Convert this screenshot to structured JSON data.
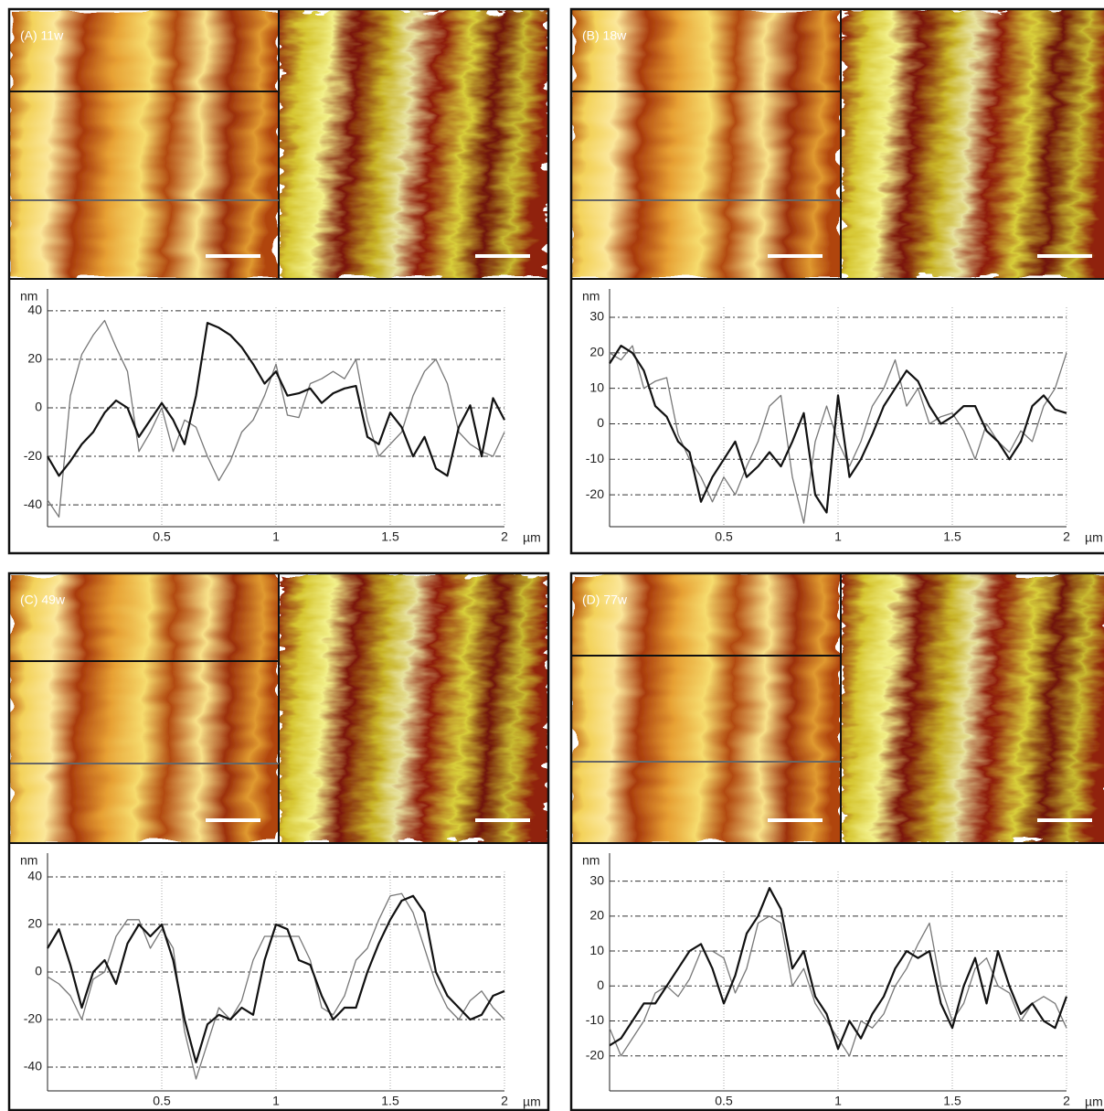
{
  "chart_data": [
    {
      "type": "line",
      "title": "(A) 11w",
      "y_label": "nm",
      "x_label": "µm",
      "x": [
        0,
        0.05,
        0.1,
        0.15,
        0.2,
        0.25,
        0.3,
        0.35,
        0.4,
        0.45,
        0.5,
        0.55,
        0.6,
        0.65,
        0.7,
        0.75,
        0.8,
        0.85,
        0.9,
        0.95,
        1,
        1.05,
        1.1,
        1.15,
        1.2,
        1.25,
        1.3,
        1.35,
        1.4,
        1.45,
        1.5,
        1.55,
        1.6,
        1.65,
        1.7,
        1.75,
        1.8,
        1.85,
        1.9,
        1.95,
        2
      ],
      "xlim": [
        0,
        2
      ],
      "xticks": [
        0.5,
        1,
        1.5,
        2
      ],
      "ylim": [
        -49,
        49
      ],
      "yticks": [
        -40,
        -20,
        0,
        20,
        40
      ],
      "series": [
        {
          "color": "#777777",
          "values": [
            -38,
            -45,
            5,
            22,
            30,
            36,
            25,
            15,
            -18,
            -10,
            0,
            -18,
            -5,
            -8,
            -20,
            -30,
            -22,
            -10,
            -5,
            5,
            18,
            -3,
            -4,
            10,
            12,
            15,
            12,
            20,
            -5,
            -20,
            -15,
            -10,
            5,
            15,
            20,
            10,
            -10,
            -15,
            -18,
            -20,
            -10
          ]
        },
        {
          "color": "#111111",
          "values": [
            -20,
            -28,
            -22,
            -15,
            -10,
            -2,
            3,
            0,
            -12,
            -5,
            2,
            -5,
            -15,
            5,
            35,
            33,
            30,
            25,
            18,
            10,
            15,
            5,
            6,
            8,
            2,
            6,
            8,
            9,
            -12,
            -15,
            -2,
            -8,
            -20,
            -12,
            -25,
            -28,
            -8,
            1,
            -20,
            4,
            -5
          ]
        }
      ]
    },
    {
      "type": "line",
      "title": "(B) 18w",
      "y_label": "nm",
      "x_label": "µm",
      "x": [
        0,
        0.05,
        0.1,
        0.15,
        0.2,
        0.25,
        0.3,
        0.35,
        0.4,
        0.45,
        0.5,
        0.55,
        0.6,
        0.65,
        0.7,
        0.75,
        0.8,
        0.85,
        0.9,
        0.95,
        1,
        1.05,
        1.1,
        1.15,
        1.2,
        1.25,
        1.3,
        1.35,
        1.4,
        1.45,
        1.5,
        1.55,
        1.6,
        1.65,
        1.7,
        1.75,
        1.8,
        1.85,
        1.9,
        1.95,
        2
      ],
      "xlim": [
        0,
        2
      ],
      "xticks": [
        0.5,
        1,
        1.5,
        2
      ],
      "ylim": [
        -29,
        38
      ],
      "yticks": [
        -20,
        -10,
        0,
        10,
        20,
        30
      ],
      "series": [
        {
          "color": "#777777",
          "values": [
            20,
            18,
            22,
            10,
            12,
            13,
            -3,
            -10,
            -15,
            -22,
            -15,
            -20,
            -12,
            -5,
            5,
            8,
            -15,
            -28,
            -5,
            5,
            -5,
            -12,
            -5,
            5,
            10,
            18,
            5,
            10,
            0,
            2,
            3,
            -2,
            -10,
            0,
            -5,
            -8,
            -2,
            -5,
            5,
            10,
            20
          ]
        },
        {
          "color": "#111111",
          "values": [
            17,
            22,
            20,
            15,
            5,
            2,
            -5,
            -8,
            -22,
            -15,
            -10,
            -5,
            -15,
            -12,
            -8,
            -12,
            -5,
            3,
            -20,
            -25,
            8,
            -15,
            -10,
            -3,
            5,
            10,
            15,
            12,
            5,
            0,
            2,
            5,
            5,
            -2,
            -5,
            -10,
            -5,
            5,
            8,
            4,
            3
          ]
        }
      ]
    },
    {
      "type": "line",
      "title": "(C) 49w",
      "y_label": "nm",
      "x_label": "µm",
      "x": [
        0,
        0.05,
        0.1,
        0.15,
        0.2,
        0.25,
        0.3,
        0.35,
        0.4,
        0.45,
        0.5,
        0.55,
        0.6,
        0.65,
        0.7,
        0.75,
        0.8,
        0.85,
        0.9,
        0.95,
        1,
        1.05,
        1.1,
        1.15,
        1.2,
        1.25,
        1.3,
        1.35,
        1.4,
        1.45,
        1.5,
        1.55,
        1.6,
        1.65,
        1.7,
        1.75,
        1.8,
        1.85,
        1.9,
        1.95,
        2
      ],
      "xlim": [
        0,
        2
      ],
      "xticks": [
        0.5,
        1,
        1.5,
        2
      ],
      "ylim": [
        -50,
        50
      ],
      "yticks": [
        -40,
        -20,
        0,
        20,
        40
      ],
      "series": [
        {
          "color": "#777777",
          "values": [
            -2,
            -5,
            -10,
            -20,
            -3,
            0,
            15,
            22,
            22,
            10,
            18,
            10,
            -25,
            -45,
            -30,
            -15,
            -20,
            -12,
            5,
            15,
            15,
            15,
            15,
            5,
            -15,
            -18,
            -10,
            5,
            10,
            22,
            32,
            33,
            25,
            10,
            -5,
            -15,
            -20,
            -12,
            -8,
            -15,
            -20
          ]
        },
        {
          "color": "#111111",
          "values": [
            10,
            18,
            3,
            -15,
            0,
            5,
            -5,
            12,
            20,
            15,
            20,
            5,
            -20,
            -38,
            -22,
            -18,
            -20,
            -15,
            -18,
            5,
            20,
            18,
            5,
            3,
            -10,
            -20,
            -15,
            -15,
            0,
            12,
            22,
            30,
            32,
            25,
            0,
            -10,
            -15,
            -20,
            -18,
            -10,
            -8
          ]
        }
      ]
    },
    {
      "type": "line",
      "title": "(D) 77w",
      "y_label": "nm",
      "x_label": "µm",
      "x": [
        0,
        0.05,
        0.1,
        0.15,
        0.2,
        0.25,
        0.3,
        0.35,
        0.4,
        0.45,
        0.5,
        0.55,
        0.6,
        0.65,
        0.7,
        0.75,
        0.8,
        0.85,
        0.9,
        0.95,
        1,
        1.05,
        1.1,
        1.15,
        1.2,
        1.25,
        1.3,
        1.35,
        1.4,
        1.45,
        1.5,
        1.55,
        1.6,
        1.65,
        1.7,
        1.75,
        1.8,
        1.85,
        1.9,
        1.95,
        2
      ],
      "xlim": [
        0,
        2
      ],
      "xticks": [
        0.5,
        1,
        1.5,
        2
      ],
      "ylim": [
        -30,
        38
      ],
      "yticks": [
        -20,
        -10,
        0,
        10,
        20,
        30
      ],
      "series": [
        {
          "color": "#777777",
          "values": [
            -12,
            -20,
            -15,
            -10,
            -2,
            0,
            -3,
            2,
            10,
            10,
            8,
            -2,
            5,
            18,
            20,
            18,
            0,
            5,
            -5,
            -10,
            -15,
            -20,
            -10,
            -12,
            -8,
            0,
            5,
            12,
            18,
            0,
            -10,
            -5,
            5,
            8,
            0,
            -2,
            -10,
            -5,
            -3,
            -5,
            -12
          ]
        },
        {
          "color": "#111111",
          "values": [
            -17,
            -15,
            -10,
            -5,
            -5,
            0,
            5,
            10,
            12,
            5,
            -5,
            3,
            15,
            20,
            28,
            22,
            5,
            10,
            -3,
            -8,
            -18,
            -10,
            -15,
            -8,
            -3,
            5,
            10,
            8,
            10,
            -5,
            -12,
            0,
            8,
            -5,
            10,
            0,
            -8,
            -5,
            -10,
            -12,
            -3
          ]
        }
      ]
    }
  ]
}
